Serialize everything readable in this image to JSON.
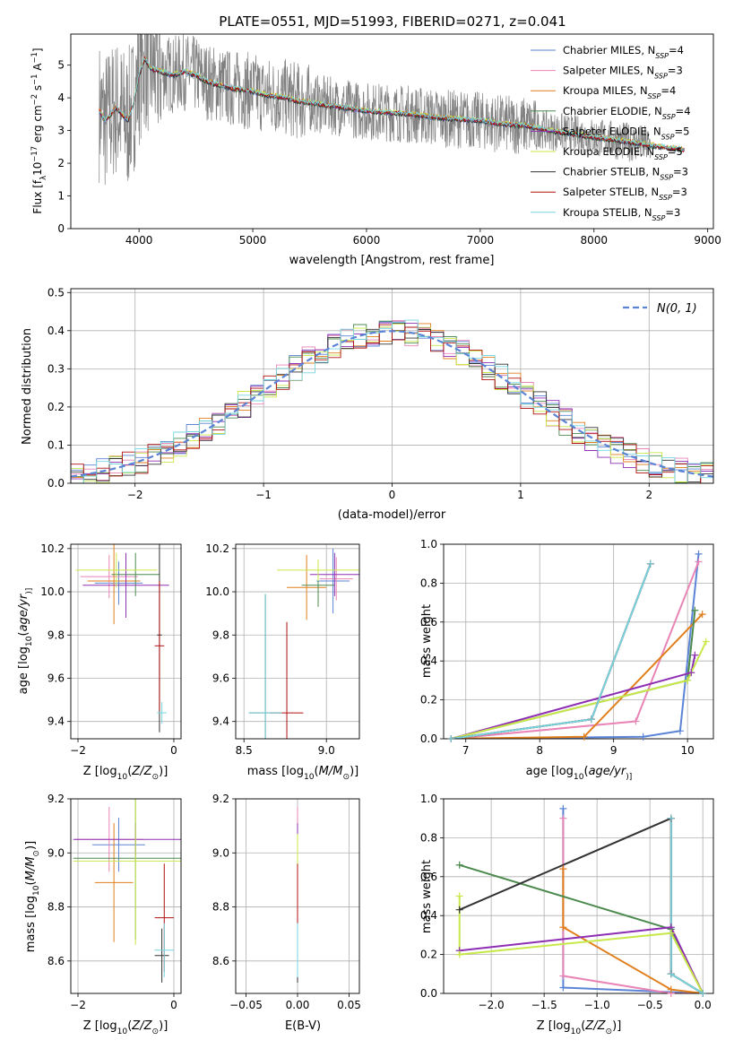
{
  "title": "PLATE=0551, MJD=51993, FIBERID=0271, z=0.041",
  "colors": {
    "Chabrier MILES": "#5b84d6",
    "Salpeter MILES": "#e884b6",
    "Kroupa MILES": "#e07f1c",
    "Chabrier ELODIE": "#4c8a4e",
    "Salpeter ELODIE": "#8e2fb3",
    "Kroupa ELODIE": "#c8e84a",
    "Chabrier STELIB": "#333333",
    "Salpeter STELIB": "#b01010",
    "Kroupa STELIB": "#76d6e0",
    "data": "#808080",
    "normal": "#5b84d6"
  },
  "chart_data": [
    {
      "id": "spectrum",
      "type": "line",
      "xlabel": "wavelength [Angstrom, rest frame]",
      "ylabel_parts": [
        "Flux [f",
        "λ",
        "10",
        "−17",
        " erg cm",
        "−2",
        " s",
        "−1",
        " A",
        "−1",
        "]"
      ],
      "xlim": [
        3400,
        9050
      ],
      "ylim": [
        0,
        5.95
      ],
      "xticks": [
        4000,
        5000,
        6000,
        7000,
        8000,
        9000
      ],
      "yticks": [
        0,
        1,
        2,
        3,
        4,
        5
      ],
      "grid": false,
      "legend_position": "top-right",
      "legend": [
        {
          "name": "Chabrier MILES",
          "nssp": "4"
        },
        {
          "name": "Salpeter MILES",
          "nssp": "3"
        },
        {
          "name": "Kroupa MILES",
          "nssp": "4"
        },
        {
          "name": "Chabrier ELODIE",
          "nssp": "4"
        },
        {
          "name": "Salpeter ELODIE",
          "nssp": "5"
        },
        {
          "name": "Kroupa ELODIE",
          "nssp": "5"
        },
        {
          "name": "Chabrier STELIB",
          "nssp": "3"
        },
        {
          "name": "Salpeter STELIB",
          "nssp": "3"
        },
        {
          "name": "Kroupa STELIB",
          "nssp": "3"
        }
      ],
      "model_x": [
        3650,
        3700,
        3800,
        3900,
        3950,
        4000,
        4050,
        4100,
        4200,
        4300,
        4400,
        4500,
        4600,
        4700,
        4800,
        4900,
        5000,
        5100,
        5200,
        5300,
        5400,
        5500,
        5600,
        5700,
        5800,
        5900,
        6000,
        6200,
        6400,
        6600,
        6800,
        7000,
        7200,
        7400,
        7600,
        7800,
        8000,
        8200,
        8400,
        8600,
        8800
      ],
      "model_y": [
        3.6,
        3.3,
        3.7,
        3.3,
        3.8,
        4.7,
        5.2,
        4.9,
        4.8,
        4.7,
        4.8,
        4.7,
        4.5,
        4.4,
        4.3,
        4.25,
        4.2,
        4.1,
        4.05,
        4.0,
        3.9,
        3.85,
        3.8,
        3.75,
        3.7,
        3.65,
        3.6,
        3.55,
        3.5,
        3.4,
        3.35,
        3.3,
        3.2,
        3.15,
        3.0,
        2.9,
        2.8,
        2.7,
        2.6,
        2.5,
        2.4
      ],
      "data_x_range": [
        3650,
        8500
      ]
    },
    {
      "id": "residuals",
      "type": "line",
      "xlabel": "(data-model)/error",
      "ylabel": "Normed distribution",
      "xlim": [
        -2.5,
        2.5
      ],
      "ylim": [
        0,
        0.51
      ],
      "xticks": [
        -2,
        -1,
        0,
        1,
        2
      ],
      "yticks": [
        0.0,
        0.1,
        0.2,
        0.3,
        0.4,
        0.5
      ],
      "grid": true,
      "legend_position": "top-right",
      "normal_label": "N(0, 1)",
      "bin_width": 0.1
    },
    {
      "id": "age_vs_Z",
      "type": "scatter",
      "xlabel_parts": [
        "Z [log",
        "10",
        "(",
        "Z/Z",
        "⊙",
        ")]"
      ],
      "ylabel_parts": [
        "age  [log",
        "10",
        "(",
        "age/yr",
        ")]"
      ],
      "xlim": [
        -2.15,
        0.15
      ],
      "ylim": [
        9.32,
        10.22
      ],
      "xticks": [
        -2,
        0
      ],
      "yticks": [
        9.4,
        9.6,
        9.8,
        10.0,
        10.2
      ],
      "grid": true,
      "points": [
        {
          "model": "Chabrier MILES",
          "x": -1.15,
          "y": 10.04,
          "ex": 0.5,
          "ey": 0.1
        },
        {
          "model": "Salpeter MILES",
          "x": -1.35,
          "y": 10.07,
          "ex": 0.6,
          "ey": 0.1
        },
        {
          "model": "Kroupa MILES",
          "x": -1.25,
          "y": 10.05,
          "ex": 0.55,
          "ey": 0.2
        },
        {
          "model": "Chabrier ELODIE",
          "x": -0.8,
          "y": 10.08,
          "ex": 0.5,
          "ey": 0.1
        },
        {
          "model": "Salpeter ELODIE",
          "x": -1.0,
          "y": 10.03,
          "ex": 0.9,
          "ey": 0.15
        },
        {
          "model": "Kroupa ELODIE",
          "x": -1.2,
          "y": 10.1,
          "ex": 0.85,
          "ey": 0.08
        },
        {
          "model": "Chabrier STELIB",
          "x": -0.3,
          "y": 9.8,
          "ex": 0.05,
          "ey": 0.45
        },
        {
          "model": "Salpeter STELIB",
          "x": -0.3,
          "y": 9.75,
          "ex": 0.1,
          "ey": 0.3
        },
        {
          "model": "Kroupa STELIB",
          "x": -0.25,
          "y": 9.44,
          "ex": 0.1,
          "ey": 0.05
        }
      ]
    },
    {
      "id": "age_vs_mass",
      "type": "scatter",
      "xlabel_parts": [
        "mass [log",
        "10",
        "(",
        "M/M",
        "⊙",
        ")]"
      ],
      "ylabel_parts": [],
      "xlim": [
        8.45,
        9.2
      ],
      "ylim": [
        9.32,
        10.22
      ],
      "xticks": [
        8.5,
        9.0
      ],
      "yticks": [
        9.4,
        9.6,
        9.8,
        10.0,
        10.2
      ],
      "grid": true,
      "points": [
        {
          "model": "Chabrier MILES",
          "x": 9.04,
          "y": 10.05,
          "ex": 0.1,
          "ey": 0.15
        },
        {
          "model": "Salpeter MILES",
          "x": 9.06,
          "y": 10.06,
          "ex": 0.1,
          "ey": 0.1
        },
        {
          "model": "Kroupa MILES",
          "x": 8.88,
          "y": 10.02,
          "ex": 0.12,
          "ey": 0.15
        },
        {
          "model": "Chabrier ELODIE",
          "x": 8.95,
          "y": 10.03,
          "ex": 0.1,
          "ey": 0.1
        },
        {
          "model": "Salpeter ELODIE",
          "x": 9.05,
          "y": 10.08,
          "ex": 0.15,
          "ey": 0.1
        },
        {
          "model": "Kroupa ELODIE",
          "x": 8.95,
          "y": 10.1,
          "ex": 0.25,
          "ey": 0.05
        },
        {
          "model": "Chabrier STELIB",
          "x": 8.63,
          "y": 9.44,
          "ex": 0.1,
          "ey": 0.55
        },
        {
          "model": "Salpeter STELIB",
          "x": 8.76,
          "y": 9.44,
          "ex": 0.1,
          "ey": 0.42
        },
        {
          "model": "Kroupa STELIB",
          "x": 8.63,
          "y": 9.44,
          "ex": 0.1,
          "ey": 0.55
        }
      ]
    },
    {
      "id": "weight_vs_age",
      "type": "line",
      "xlabel_parts": [
        "age  [log",
        "10",
        "(",
        "age/yr",
        ")]"
      ],
      "ylabel": "mass weight",
      "xlim": [
        6.7,
        10.35
      ],
      "ylim": [
        0,
        1.0
      ],
      "xticks": [
        7,
        8,
        9,
        10
      ],
      "yticks": [
        0.0,
        0.2,
        0.4,
        0.6,
        0.8,
        1.0
      ],
      "grid": true,
      "series": [
        {
          "model": "Chabrier MILES",
          "x": [
            6.8,
            9.4,
            9.9,
            10.15
          ],
          "y": [
            0.0,
            0.01,
            0.04,
            0.95
          ]
        },
        {
          "model": "Salpeter MILES",
          "x": [
            6.8,
            9.3,
            10.15
          ],
          "y": [
            0.0,
            0.09,
            0.91
          ]
        },
        {
          "model": "Kroupa MILES",
          "x": [
            6.8,
            8.6,
            10.2
          ],
          "y": [
            0.0,
            0.01,
            0.64
          ]
        },
        {
          "model": "Chabrier ELODIE",
          "x": [
            6.8,
            10.0,
            10.1
          ],
          "y": [
            0.0,
            0.3,
            0.66
          ]
        },
        {
          "model": "Salpeter ELODIE",
          "x": [
            6.8,
            10.05,
            10.1
          ],
          "y": [
            0.0,
            0.34,
            0.43
          ]
        },
        {
          "model": "Kroupa ELODIE",
          "x": [
            6.8,
            10.0,
            10.25
          ],
          "y": [
            0.0,
            0.3,
            0.5
          ]
        },
        {
          "model": "Chabrier STELIB",
          "x": [
            6.8,
            8.7,
            9.5
          ],
          "y": [
            0.0,
            0.1,
            0.9
          ]
        },
        {
          "model": "Salpeter STELIB",
          "x": [
            6.8,
            8.7,
            9.5
          ],
          "y": [
            0.0,
            0.1,
            0.9
          ]
        },
        {
          "model": "Kroupa STELIB",
          "x": [
            6.8,
            8.7,
            9.5
          ],
          "y": [
            0.0,
            0.1,
            0.9
          ]
        }
      ]
    },
    {
      "id": "mass_vs_Z",
      "type": "scatter",
      "xlabel_parts": [
        "Z [log",
        "10",
        "(",
        "Z/Z",
        "⊙",
        ")]"
      ],
      "ylabel_parts": [
        "mass [log",
        "10",
        "(",
        "M/M",
        "⊙",
        ")]"
      ],
      "xlim": [
        -2.15,
        0.15
      ],
      "ylim": [
        8.48,
        9.2
      ],
      "xticks": [
        -2,
        0
      ],
      "yticks": [
        8.6,
        8.8,
        9.0,
        9.2
      ],
      "grid": true,
      "points": [
        {
          "model": "Chabrier MILES",
          "x": -1.15,
          "y": 9.03,
          "ex": 0.55,
          "ey": 0.1
        },
        {
          "model": "Salpeter MILES",
          "x": -1.35,
          "y": 9.05,
          "ex": 0.7,
          "ey": 0.12
        },
        {
          "model": "Kroupa MILES",
          "x": -1.25,
          "y": 8.89,
          "ex": 0.4,
          "ey": 0.22
        },
        {
          "model": "Chabrier ELODIE",
          "x": -0.8,
          "y": 8.98,
          "ex": 1.3,
          "ey": 0.3
        },
        {
          "model": "Salpeter ELODIE",
          "x": -0.8,
          "y": 9.05,
          "ex": 1.3,
          "ey": 0.06
        },
        {
          "model": "Kroupa ELODIE",
          "x": -0.8,
          "y": 8.97,
          "ex": 1.3,
          "ey": 0.31
        },
        {
          "model": "Chabrier STELIB",
          "x": -0.25,
          "y": 8.62,
          "ex": 0.15,
          "ey": 0.1
        },
        {
          "model": "Salpeter STELIB",
          "x": -0.2,
          "y": 8.76,
          "ex": 0.2,
          "ey": 0.2
        },
        {
          "model": "Kroupa STELIB",
          "x": -0.2,
          "y": 8.64,
          "ex": 0.2,
          "ey": 0.1
        }
      ]
    },
    {
      "id": "mass_vs_ebv",
      "type": "scatter",
      "xlabel": "E(B-V)",
      "ylabel_parts": [],
      "xlim": [
        -0.06,
        0.06
      ],
      "ylim": [
        8.48,
        9.2
      ],
      "xticks": [
        -0.05,
        0.0,
        0.05
      ],
      "yticks": [
        8.6,
        8.8,
        9.0,
        9.2
      ],
      "grid": true,
      "points": [
        {
          "model": "Chabrier MILES",
          "x": 0.0,
          "y": 9.0,
          "ex": 0,
          "ey": 0.1
        },
        {
          "model": "Salpeter MILES",
          "x": 0.0,
          "y": 9.05,
          "ex": 0,
          "ey": 0.12
        },
        {
          "model": "Kroupa MILES",
          "x": 0.0,
          "y": 8.89,
          "ex": 0,
          "ey": 0.15
        },
        {
          "model": "Chabrier ELODIE",
          "x": 0.0,
          "y": 8.98,
          "ex": 0,
          "ey": 0.1
        },
        {
          "model": "Salpeter ELODIE",
          "x": 0.0,
          "y": 9.05,
          "ex": 0,
          "ey": 0.06
        },
        {
          "model": "Kroupa ELODIE",
          "x": 0.0,
          "y": 8.97,
          "ex": 0,
          "ey": 0.1
        },
        {
          "model": "Chabrier STELIB",
          "x": 0.0,
          "y": 8.62,
          "ex": 0,
          "ey": 0.1
        },
        {
          "model": "Salpeter STELIB",
          "x": 0.0,
          "y": 8.76,
          "ex": 0,
          "ey": 0.2
        },
        {
          "model": "Kroupa STELIB",
          "x": 0.0,
          "y": 8.64,
          "ex": 0,
          "ey": 0.1
        }
      ]
    },
    {
      "id": "weight_vs_Z",
      "type": "line",
      "xlabel_parts": [
        "Z [log",
        "10",
        "(",
        "Z/Z",
        "⊙",
        ")]"
      ],
      "ylabel": "mass weight",
      "xlim": [
        -2.45,
        0.1
      ],
      "ylim": [
        0,
        1.0
      ],
      "xticks": [
        -2.0,
        -1.5,
        -1.0,
        -0.5,
        0.0
      ],
      "yticks": [
        0.0,
        0.2,
        0.4,
        0.6,
        0.8,
        1.0
      ],
      "grid": true,
      "series": [
        {
          "model": "Chabrier MILES",
          "x": [
            -1.32,
            -1.32,
            0.0
          ],
          "y": [
            0.95,
            0.03,
            0.0
          ]
        },
        {
          "model": "Salpeter MILES",
          "x": [
            -1.32,
            -1.32,
            -0.3,
            0.0
          ],
          "y": [
            0.9,
            0.09,
            0.0,
            0.0
          ]
        },
        {
          "model": "Kroupa MILES",
          "x": [
            -1.32,
            -1.32,
            -0.3,
            0.0
          ],
          "y": [
            0.64,
            0.34,
            0.02,
            0.0
          ]
        },
        {
          "model": "Chabrier ELODIE",
          "x": [
            -2.3,
            -0.3,
            0.0
          ],
          "y": [
            0.66,
            0.33,
            0.0
          ]
        },
        {
          "model": "Salpeter ELODIE",
          "x": [
            -2.3,
            -0.3,
            0.0
          ],
          "y": [
            0.22,
            0.34,
            0.0
          ]
        },
        {
          "model": "Kroupa ELODIE",
          "x": [
            -2.3,
            -2.3,
            -0.3,
            0.0
          ],
          "y": [
            0.5,
            0.2,
            0.31,
            0.0
          ]
        },
        {
          "model": "Chabrier STELIB",
          "x": [
            -2.3,
            -0.3,
            -0.3,
            0.0
          ],
          "y": [
            0.43,
            0.9,
            0.1,
            0.0
          ]
        },
        {
          "model": "Salpeter STELIB",
          "x": [
            -0.3,
            -0.3,
            0.0
          ],
          "y": [
            0.9,
            0.1,
            0.0
          ]
        },
        {
          "model": "Kroupa STELIB",
          "x": [
            -0.3,
            -0.3,
            0.0
          ],
          "y": [
            0.9,
            0.1,
            0.0
          ]
        }
      ]
    }
  ]
}
